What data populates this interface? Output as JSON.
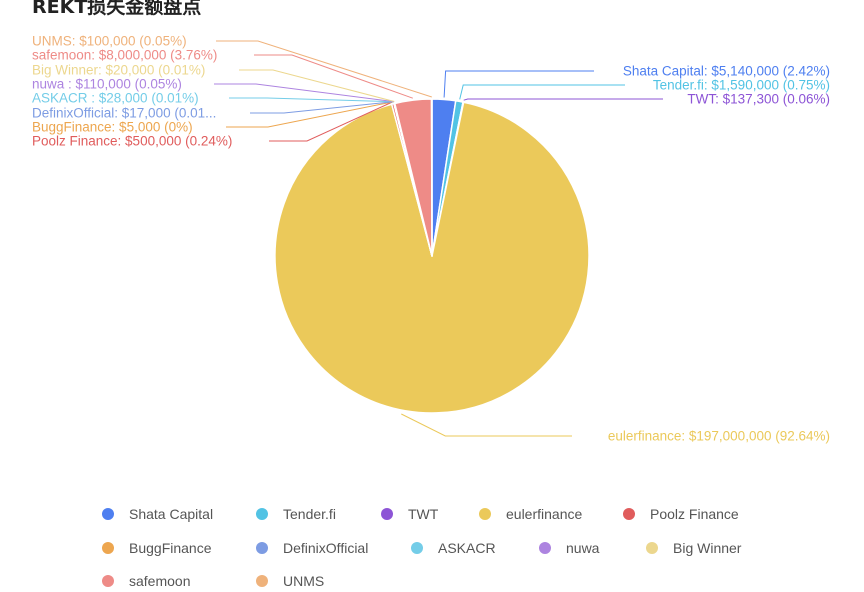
{
  "title": "REKT损失金额盘点",
  "chart_data": {
    "type": "pie",
    "title": "REKT损失金额盘点",
    "legend_position": "bottom",
    "series": [
      {
        "name": "Shata Capital",
        "value": 5140000,
        "label": "Shata Capital: $5,140,000 (2.42%)",
        "color": "#4e7ff0"
      },
      {
        "name": "Tender.fi",
        "value": 1590000,
        "label": "Tender.fi: $1,590,000 (0.75%)",
        "color": "#52c3e4"
      },
      {
        "name": "TWT",
        "value": 137300,
        "label": "TWT: $137,300 (0.06%)",
        "color": "#8d54d6"
      },
      {
        "name": "eulerfinance",
        "value": 197000000,
        "label": "eulerfinance: $197,000,000 (92.64%)",
        "color": "#ebc95a"
      },
      {
        "name": "Poolz Finance",
        "value": 500000,
        "label": "Poolz Finance: $500,000 (0.24%)",
        "color": "#e05c5c"
      },
      {
        "name": "BuggFinance",
        "value": 5000,
        "label": "BuggFinance: $5,000 (0%)",
        "color": "#eda64f"
      },
      {
        "name": "DefinixOfficial",
        "value": 17000,
        "label": "DefinixOfficial: $17,000 (0.01...",
        "color": "#7d9ce3"
      },
      {
        "name": "ASKACR",
        "value": 28000,
        "label": "ASKACR : $28,000 (0.01%)",
        "color": "#74cde8"
      },
      {
        "name": "nuwa",
        "value": 110000,
        "label": "nuwa : $110,000 (0.05%)",
        "color": "#ad84e0"
      },
      {
        "name": "Big Winner",
        "value": 20000,
        "label": "Big Winner: $20,000 (0.01%)",
        "color": "#ecd78e"
      },
      {
        "name": "safemoon",
        "value": 8000000,
        "label": "safemoon: $8,000,000 (3.76%)",
        "color": "#ee8b87"
      },
      {
        "name": "UNMS",
        "value": 100000,
        "label": "UNMS: $100,000 (0.05%)",
        "color": "#efb27b"
      }
    ]
  }
}
